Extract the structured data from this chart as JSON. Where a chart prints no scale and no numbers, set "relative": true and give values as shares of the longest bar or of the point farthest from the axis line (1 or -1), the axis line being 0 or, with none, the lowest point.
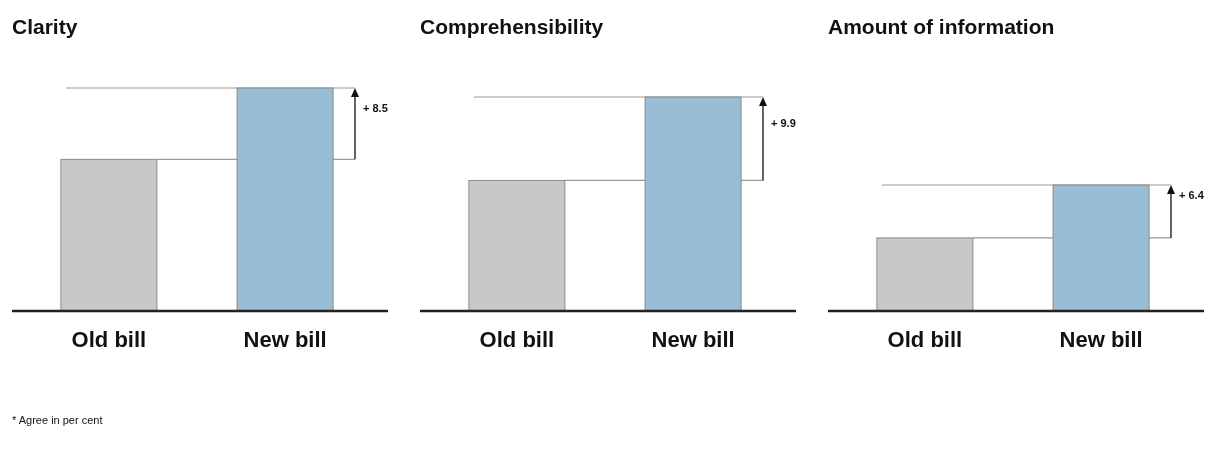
{
  "chart_data": [
    {
      "type": "bar",
      "title": "Clarity",
      "categories": [
        "Old bill",
        "New bill"
      ],
      "values": [
        0.68,
        1
      ],
      "colors": [
        "#c8c8c8",
        "#98bdd4"
      ],
      "relative": true,
      "ref_lines": [
        {
          "axis": "y",
          "value": 0.68
        },
        {
          "axis": "y",
          "value": 1
        }
      ],
      "annotations": [
        "+ 8.5",
        "* Agree in per cent"
      ]
    },
    {
      "type": "bar",
      "title": "Comprehensibility",
      "categories": [
        "Old bill",
        "New bill"
      ],
      "values": [
        0.61,
        1
      ],
      "colors": [
        "#c8c8c8",
        "#98bdd4"
      ],
      "relative": true,
      "ref_lines": [
        {
          "axis": "y",
          "value": 0.61
        },
        {
          "axis": "y",
          "value": 1
        }
      ],
      "annotations": [
        "+ 9.9"
      ]
    },
    {
      "type": "bar",
      "title": "Amount of information",
      "categories": [
        "Old bill",
        "New bill"
      ],
      "values": [
        0.58,
        1
      ],
      "colors": [
        "#c8c8c8",
        "#98bdd4"
      ],
      "relative": true,
      "ref_lines": [
        {
          "axis": "y",
          "value": 0.58
        },
        {
          "axis": "y",
          "value": 1
        }
      ],
      "annotations": [
        "+ 6.4"
      ]
    }
  ]
}
